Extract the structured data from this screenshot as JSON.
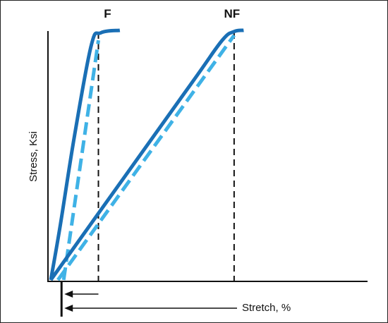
{
  "chart_data": {
    "type": "line",
    "title": "",
    "xlabel": "Stretch, %",
    "ylabel": "Stress, Ksi",
    "grid": false,
    "legend": "none",
    "colors": {
      "solid": "#1a6fb5",
      "dashed": "#3fb2e6",
      "axis": "#111111",
      "guides": "#111111"
    },
    "series": [
      {
        "name": "F",
        "style": "solid",
        "color": "#1a6fb5",
        "points": [
          [
            0,
            0
          ],
          [
            0.2,
            0.22
          ],
          [
            0.5,
            0.58
          ],
          [
            0.85,
            0.94
          ],
          [
            1.05,
            0.99
          ],
          [
            1.45,
            1.0
          ]
        ]
      },
      {
        "style": "dashed",
        "color": "#3fb2e6",
        "points": [
          [
            0.27,
            0
          ],
          [
            1.0,
            0.96
          ]
        ]
      },
      {
        "name": "NF",
        "style": "solid",
        "color": "#1a6fb5",
        "points": [
          [
            0,
            0
          ],
          [
            1.5,
            0.4
          ],
          [
            3.0,
            0.8
          ],
          [
            3.6,
            0.96
          ],
          [
            3.85,
            0.995
          ],
          [
            4.05,
            1.0
          ]
        ]
      },
      {
        "style": "dashed",
        "color": "#3fb2e6",
        "points": [
          [
            0.15,
            0
          ],
          [
            3.85,
            0.98
          ]
        ]
      }
    ],
    "markers": [
      {
        "label": "F",
        "x": 1.0
      },
      {
        "label": "NF",
        "x": 3.85
      }
    ],
    "arrows": [
      {
        "from_x": 1.0,
        "to_x": 0.27
      },
      {
        "from_x": 3.35,
        "to_x": 0.27,
        "label": "Stretch, %"
      }
    ],
    "xlim": [
      0,
      5.2
    ],
    "ylim": [
      0,
      1.0
    ]
  }
}
